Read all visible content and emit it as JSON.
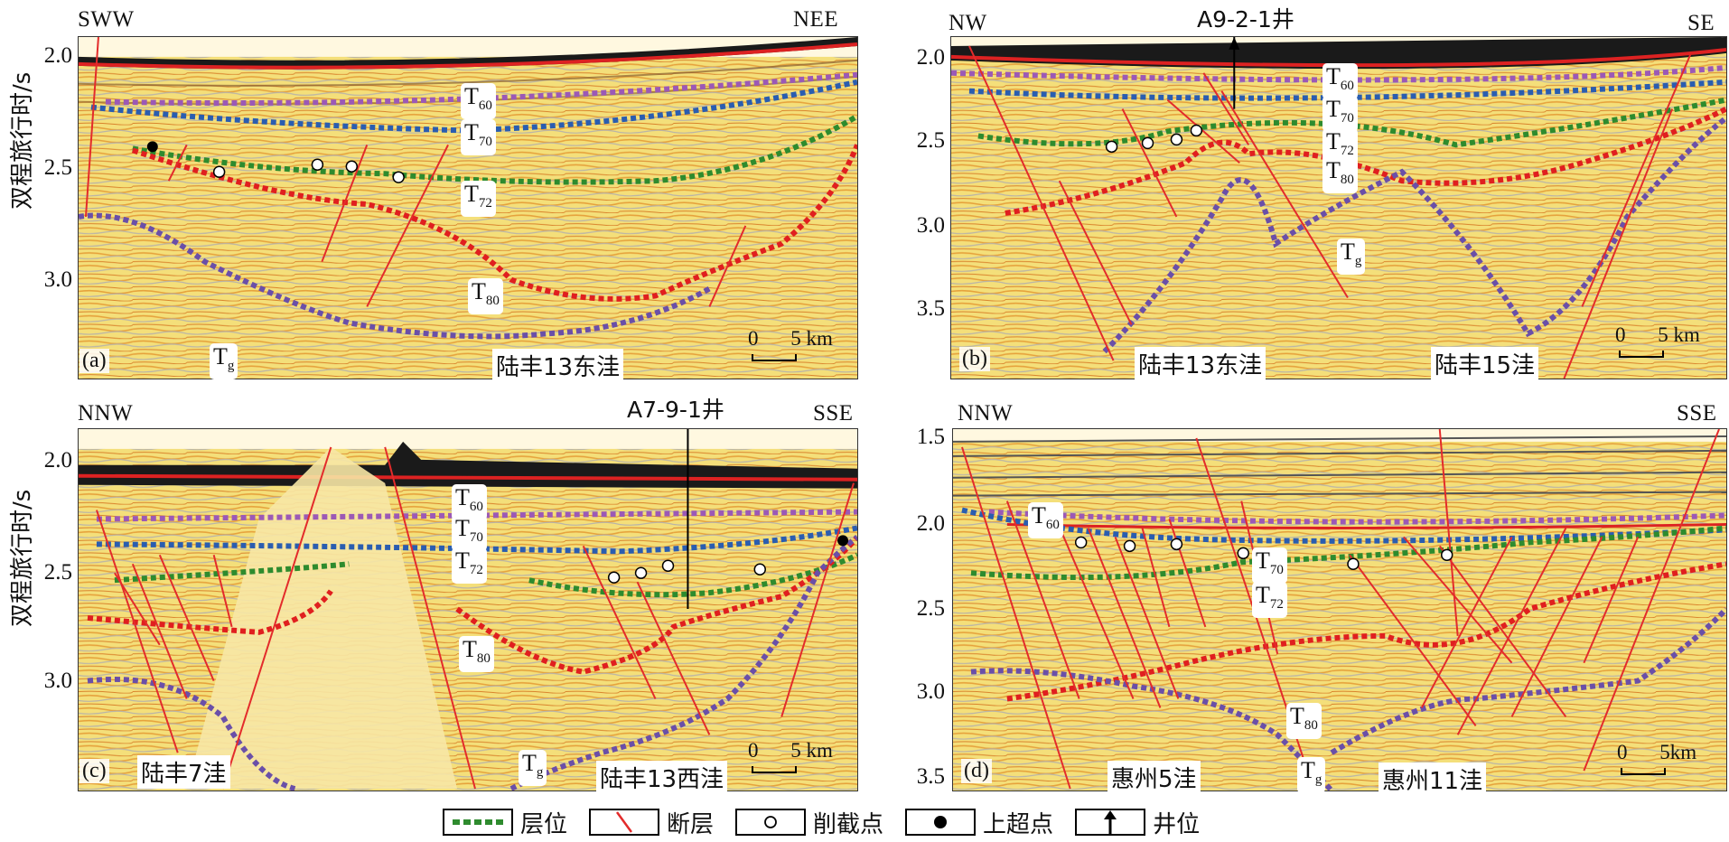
{
  "ylabel": "双程旅行时/s",
  "panels": {
    "a": {
      "id": "(a)",
      "left": "SWW",
      "right": "NEE",
      "ticks": [
        "2.0",
        "2.5",
        "3.0"
      ],
      "area1": "陆丰13东洼",
      "area2": "",
      "well": "",
      "scale": {
        "zero": "0",
        "len": "5 km"
      },
      "hz": {
        "t60": "T",
        "t60s": "60",
        "t70": "T",
        "t70s": "70",
        "t72": "T",
        "t72s": "72",
        "t80": "T",
        "t80s": "80",
        "tg": "T",
        "tgs": "g"
      }
    },
    "b": {
      "id": "(b)",
      "left": "NW",
      "right": "SE",
      "ticks": [
        "2.0",
        "2.5",
        "3.0",
        "3.5"
      ],
      "area1": "陆丰13东洼",
      "area2": "陆丰15洼",
      "well": "A9-2-1井",
      "scale": {
        "zero": "0",
        "len": "5 km"
      },
      "hz": {
        "t60": "T",
        "t60s": "60",
        "t70": "T",
        "t70s": "70",
        "t72": "T",
        "t72s": "72",
        "t80": "T",
        "t80s": "80",
        "tg": "T",
        "tgs": "g"
      }
    },
    "c": {
      "id": "(c)",
      "left": "NNW",
      "right": "SSE",
      "ticks": [
        "2.0",
        "2.5",
        "3.0"
      ],
      "area1": "陆丰7洼",
      "area2": "陆丰13西洼",
      "well": "A7-9-1井",
      "scale": {
        "zero": "0",
        "len": "5 km"
      },
      "hz": {
        "t60": "T",
        "t60s": "60",
        "t70": "T",
        "t70s": "70",
        "t72": "T",
        "t72s": "72",
        "t80": "T",
        "t80s": "80",
        "tg": "T",
        "tgs": "g"
      }
    },
    "d": {
      "id": "(d)",
      "left": "NNW",
      "right": "SSE",
      "ticks": [
        "1.5",
        "2.0",
        "2.5",
        "3.0",
        "3.5"
      ],
      "area1": "惠州5洼",
      "area2": "惠州11洼",
      "well": "",
      "scale": {
        "zero": "0",
        "len": "5km"
      },
      "hz": {
        "t60": "T",
        "t60s": "60",
        "t70": "T",
        "t70s": "70",
        "t72": "T",
        "t72s": "72",
        "t80": "T",
        "t80s": "80",
        "tg": "T",
        "tgs": "g"
      }
    }
  },
  "legend": [
    "层位",
    "断层",
    "削截点",
    "上超点",
    "井位"
  ],
  "colors": {
    "t60": "#9b59b6",
    "t70": "#2a5db0",
    "t72": "#2e8b2e",
    "t80": "#e01f1f",
    "tg": "#6a4fa8",
    "fault": "#e32b2b",
    "seismic": "#f3dc73"
  }
}
